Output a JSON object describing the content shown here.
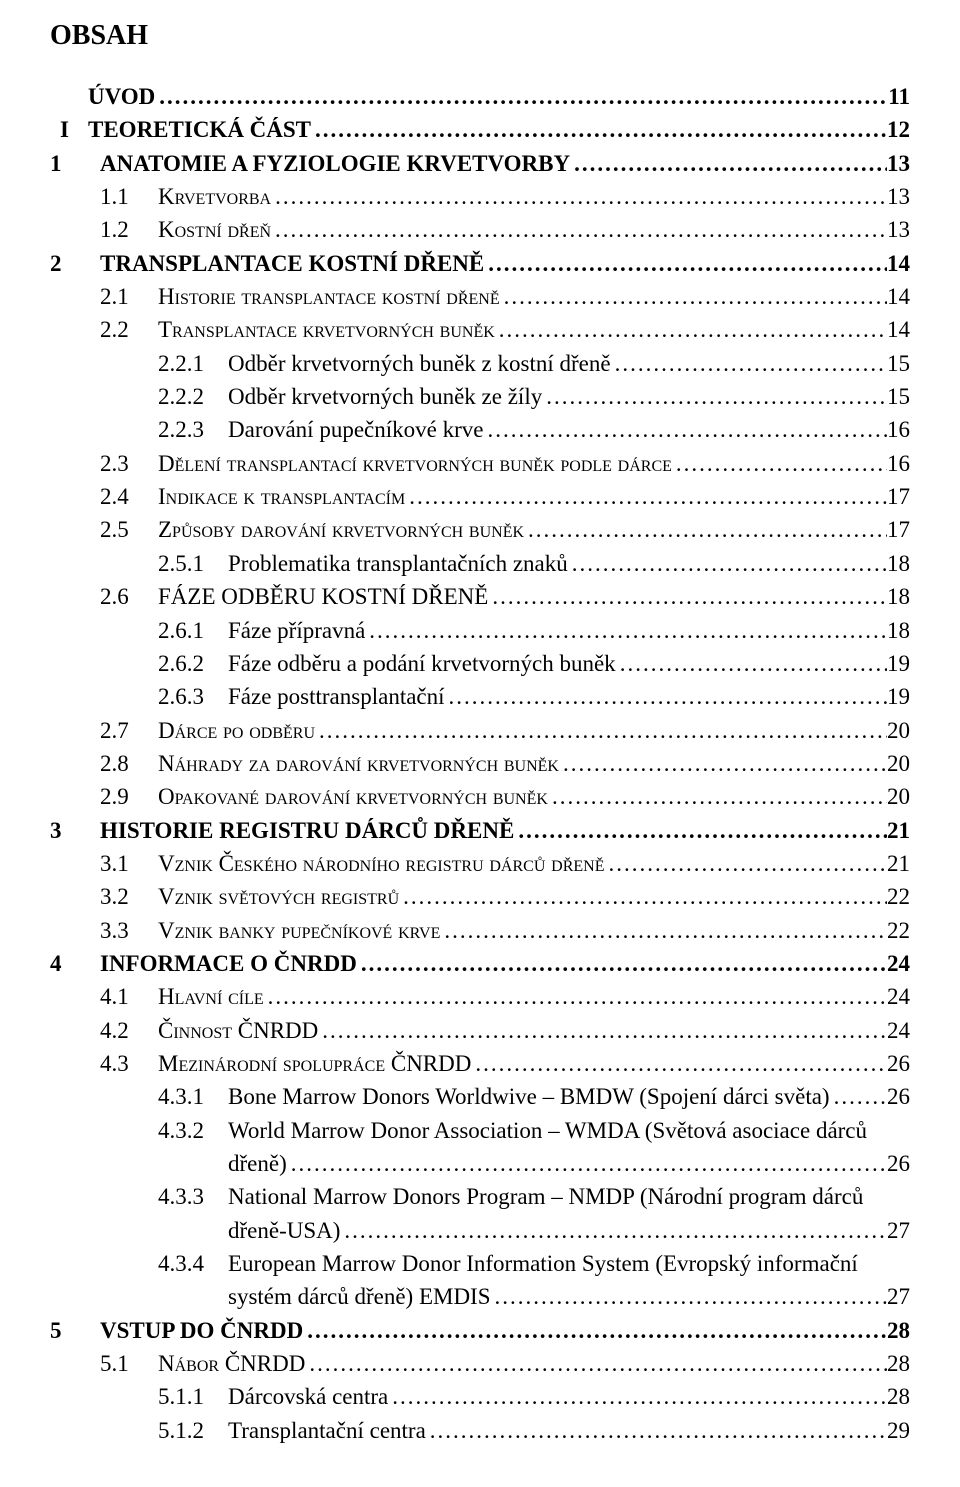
{
  "heading": "OBSAH",
  "toc": [
    {
      "level": "l0",
      "num": "",
      "text": "ÚVOD",
      "page": "11",
      "sc": false,
      "bar": false
    },
    {
      "level": "l0",
      "num": "I",
      "text": "TEORETICKÁ ČÁST",
      "page": "12",
      "sc": false,
      "bar": true
    },
    {
      "level": "l1",
      "num": "1",
      "text": "ANATOMIE A FYZIOLOGIE KRVETVORBY",
      "page": "13",
      "sc": false,
      "bar": false
    },
    {
      "level": "l2sc",
      "num": "1.1",
      "text": "Krvetvorba",
      "page": "13",
      "sc": true,
      "bar": false
    },
    {
      "level": "l2sc",
      "num": "1.2",
      "text": "Kostní dřeň",
      "page": "13",
      "sc": true,
      "bar": false
    },
    {
      "level": "l1",
      "num": "2",
      "text": "TRANSPLANTACE KOSTNÍ DŘENĚ",
      "page": "14",
      "sc": false,
      "bar": false
    },
    {
      "level": "l2sc",
      "num": "2.1",
      "text": "Historie transplantace kostní dřeně",
      "page": "14",
      "sc": true,
      "bar": false
    },
    {
      "level": "l2sc",
      "num": "2.2",
      "text": "Transplantace krvetvorných buněk",
      "page": "14",
      "sc": true,
      "bar": false
    },
    {
      "level": "l3",
      "num": "2.2.1",
      "text": "Odběr krvetvorných buněk z kostní dřeně",
      "page": "15",
      "sc": false,
      "bar": false
    },
    {
      "level": "l3",
      "num": "2.2.2",
      "text": "Odběr krvetvorných buněk ze žíly",
      "page": "15",
      "sc": false,
      "bar": false
    },
    {
      "level": "l3",
      "num": "2.2.3",
      "text": "Darování pupečníkové krve",
      "page": "16",
      "sc": false,
      "bar": false
    },
    {
      "level": "l2sc",
      "num": "2.3",
      "text": "Dělení transplantací krvetvorných buněk podle dárce",
      "page": "16",
      "sc": true,
      "bar": false
    },
    {
      "level": "l2sc",
      "num": "2.4",
      "text": "Indikace k transplantacím",
      "page": "17",
      "sc": true,
      "bar": false
    },
    {
      "level": "l2sc",
      "num": "2.5",
      "text": "Způsoby darování krvetvorných buněk",
      "page": "17",
      "sc": true,
      "bar": false
    },
    {
      "level": "l3",
      "num": "2.5.1",
      "text": "Problematika transplantačních znaků",
      "page": "18",
      "sc": false,
      "bar": false
    },
    {
      "level": "l2",
      "num": "2.6",
      "text": "FÁZE ODBĚRU KOSTNÍ DŘENĚ",
      "page": "18",
      "sc": false,
      "bar": false
    },
    {
      "level": "l3",
      "num": "2.6.1",
      "text": "Fáze přípravná",
      "page": "18",
      "sc": false,
      "bar": false
    },
    {
      "level": "l3",
      "num": "2.6.2",
      "text": "Fáze odběru a podání krvetvorných buněk",
      "page": "19",
      "sc": false,
      "bar": false
    },
    {
      "level": "l3",
      "num": "2.6.3",
      "text": "Fáze posttransplantační",
      "page": "19",
      "sc": false,
      "bar": false
    },
    {
      "level": "l2sc",
      "num": "2.7",
      "text": "Dárce po odběru",
      "page": "20",
      "sc": true,
      "bar": false
    },
    {
      "level": "l2sc",
      "num": "2.8",
      "text": "Náhrady za darování krvetvorných buněk",
      "page": "20",
      "sc": true,
      "bar": false
    },
    {
      "level": "l2sc",
      "num": "2.9",
      "text": "Opakované darování krvetvorných buněk",
      "page": "20",
      "sc": true,
      "bar": false
    },
    {
      "level": "l1",
      "num": "3",
      "text": "HISTORIE REGISTRU DÁRCŮ DŘENĚ",
      "page": "21",
      "sc": false,
      "bar": false
    },
    {
      "level": "l2sc",
      "num": "3.1",
      "text": "Vznik Českého národního registru dárců dřeně",
      "page": "21",
      "sc": true,
      "bar": false
    },
    {
      "level": "l2sc",
      "num": "3.2",
      "text": "Vznik světových registrů",
      "page": "22",
      "sc": true,
      "bar": false
    },
    {
      "level": "l2sc",
      "num": "3.3",
      "text": "Vznik banky pupečníkové krve",
      "page": "22",
      "sc": true,
      "bar": false
    },
    {
      "level": "l1",
      "num": "4",
      "text": "INFORMACE O  ČNRDD",
      "page": "24",
      "sc": false,
      "bar": false
    },
    {
      "level": "l2sc",
      "num": "4.1",
      "text": "Hlavní cíle",
      "page": "24",
      "sc": true,
      "bar": false
    },
    {
      "level": "l2sc",
      "num": "4.2",
      "text": "Činnost  ČNRDD",
      "page": "24",
      "sc": true,
      "bar": false
    },
    {
      "level": "l2sc",
      "num": "4.3",
      "text": "Mezinárodní spolupráce ČNRDD",
      "page": "26",
      "sc": true,
      "bar": false
    },
    {
      "level": "l3",
      "num": "4.3.1",
      "text": "Bone Marrow Donors Worldwive – BMDW (Spojení dárci světa)",
      "page": "26",
      "sc": false,
      "bar": false
    },
    {
      "level": "l3",
      "num": "4.3.2",
      "text": "World Marrow Donor Association – WMDA (Světová asociace dárců",
      "text2": "dřeně)",
      "page": "26",
      "sc": false,
      "bar": false
    },
    {
      "level": "l3",
      "num": "4.3.3",
      "text": "National Marrow Donors Program – NMDP (Národní program dárců",
      "text2": "dřeně-USA)",
      "page": "27",
      "sc": false,
      "bar": false
    },
    {
      "level": "l3",
      "num": "4.3.4",
      "text": "European Marrow Donor Information System (Evropský informační",
      "text2": "systém dárců dřeně) EMDIS",
      "page": "27",
      "sc": false,
      "bar": false
    },
    {
      "level": "l1",
      "num": "5",
      "text": "VSTUP DO ČNRDD",
      "page": "28",
      "sc": false,
      "bar": false
    },
    {
      "level": "l2sc",
      "num": "5.1",
      "text": "Nábor ČNRDD",
      "page": "28",
      "sc": true,
      "bar": false
    },
    {
      "level": "l3",
      "num": "5.1.1",
      "text": "Dárcovská centra",
      "page": "28",
      "sc": false,
      "bar": false
    },
    {
      "level": "l3",
      "num": "5.1.2",
      "text": "Transplantační centra",
      "page": "29",
      "sc": false,
      "bar": false
    }
  ]
}
